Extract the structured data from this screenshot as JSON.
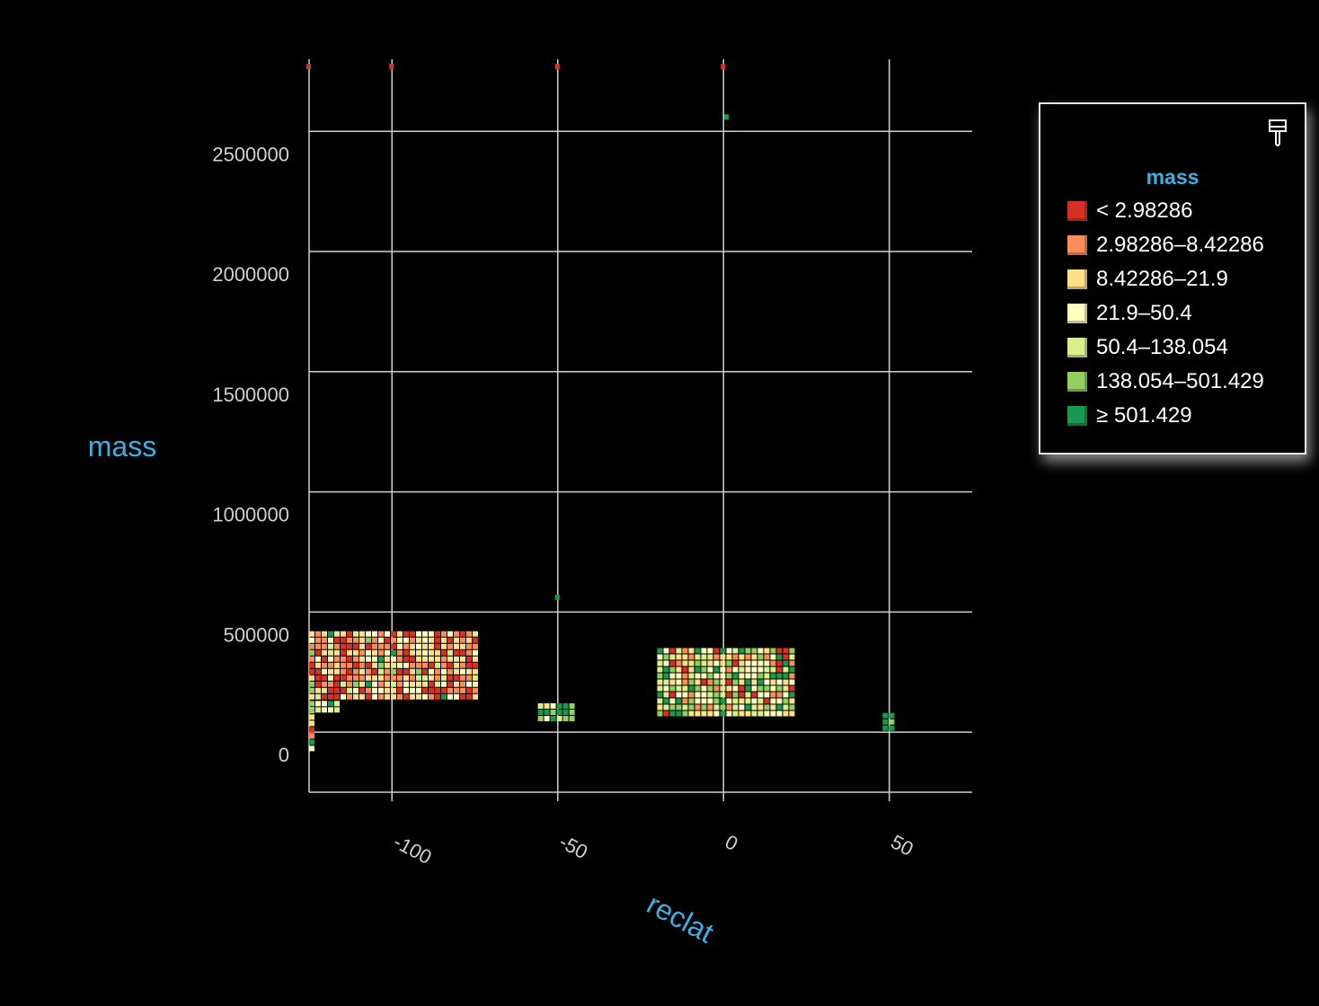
{
  "chart_data": {
    "type": "heatmap",
    "xlabel": "reclat",
    "ylabel": "mass",
    "xlim": [
      -125,
      75
    ],
    "ylim": [
      -250000,
      2800000
    ],
    "x_ticks": [
      -100,
      -50,
      0,
      50
    ],
    "x_tick_labels": [
      "-100",
      "-50",
      "0",
      "50"
    ],
    "y_ticks": [
      0,
      500000,
      1000000,
      1500000,
      2000000,
      2500000
    ],
    "y_tick_labels": [
      "0",
      "500000",
      "1000000",
      "1500000",
      "2000000",
      "2500000"
    ],
    "grid": true,
    "color_field": "mass",
    "regions": [
      {
        "x": [
          -125,
          -74
        ],
        "y": [
          130000,
          420000
        ],
        "mix": "red-heavy"
      },
      {
        "x": [
          -125,
          -116
        ],
        "y": [
          100000,
          130000
        ],
        "mix": "yellow-green"
      },
      {
        "x": [
          -125,
          -123
        ],
        "y": [
          -80000,
          100000
        ],
        "mix": "mixed"
      },
      {
        "x": [
          -56,
          -45
        ],
        "y": [
          60000,
          120000
        ],
        "mix": "green"
      },
      {
        "x": [
          -20,
          21
        ],
        "y": [
          80000,
          350000
        ],
        "mix": "green-heavy"
      },
      {
        "x": [
          48,
          52
        ],
        "y": [
          10000,
          80000
        ],
        "mix": "dark-green"
      }
    ],
    "points": [
      {
        "x": -125,
        "y": 2770000,
        "bin": 0
      },
      {
        "x": -100,
        "y": 2770000,
        "bin": 0
      },
      {
        "x": -50,
        "y": 2770000,
        "bin": 0
      },
      {
        "x": 0,
        "y": 2770000,
        "bin": 0
      },
      {
        "x": 1,
        "y": 2560000,
        "bin": 6
      },
      {
        "x": -50,
        "y": 560000,
        "bin": 6
      }
    ]
  },
  "legend": {
    "title": "mass",
    "position": "top-right",
    "icon": "paintbrush-icon",
    "items": [
      {
        "label": "< 2.98286",
        "color": "#d73027"
      },
      {
        "label": "2.98286–8.42286",
        "color": "#fc8d59"
      },
      {
        "label": "8.42286–21.9",
        "color": "#fee08b"
      },
      {
        "label": "21.9–50.4",
        "color": "#ffffbf"
      },
      {
        "label": "50.4–138.054",
        "color": "#d9ef8b"
      },
      {
        "label": "138.054–501.429",
        "color": "#91cf60"
      },
      {
        "label": "≥ 501.429",
        "color": "#1a9850"
      }
    ]
  }
}
